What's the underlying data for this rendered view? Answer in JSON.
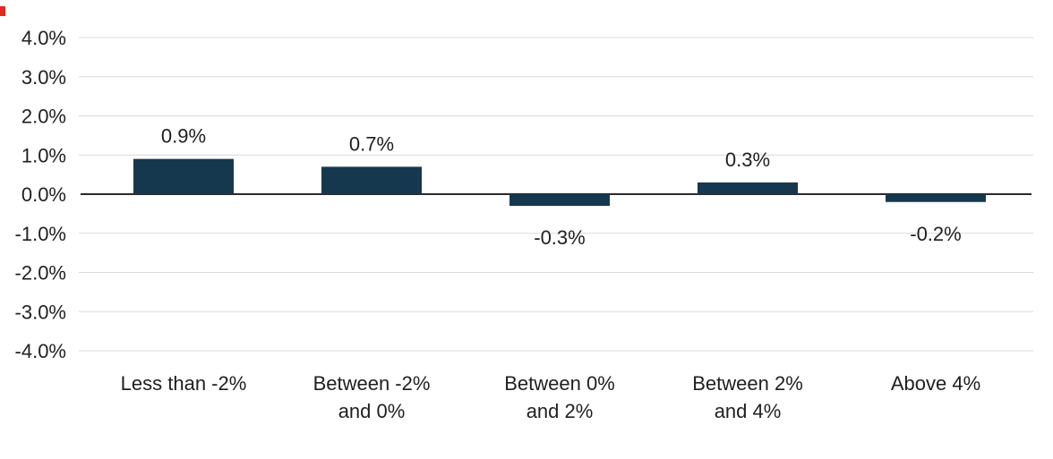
{
  "chart_data": {
    "type": "bar",
    "title": "",
    "xlabel": "",
    "ylabel": "",
    "categories": [
      [
        "Less than -2%"
      ],
      [
        "Between -2%",
        "and 0%"
      ],
      [
        "Between 0%",
        "and 2%"
      ],
      [
        "Between 2%",
        "and 4%"
      ],
      [
        "Above 4%"
      ]
    ],
    "values": [
      0.9,
      0.7,
      -0.3,
      0.3,
      -0.2
    ],
    "value_labels": [
      "0.9%",
      "0.7%",
      "-0.3%",
      "0.3%",
      "-0.2%"
    ],
    "ylim": [
      -4,
      4
    ],
    "y_ticks": [
      4,
      3,
      2,
      1,
      0,
      -1,
      -2,
      -3,
      -4
    ],
    "y_tick_labels": [
      "4.0%",
      "3.0%",
      "2.0%",
      "1.0%",
      "0.0%",
      "-1.0%",
      "-2.0%",
      "-3.0%",
      "-4.0%"
    ],
    "grid": true,
    "legend": "none",
    "colors": {
      "bar": "#16384e",
      "gridline": "#d9d9d9",
      "zero_line": "#2a2a2a",
      "text": "#1f1f1f",
      "background": "#ffffff",
      "corner_artifact": "#e02b20"
    }
  }
}
